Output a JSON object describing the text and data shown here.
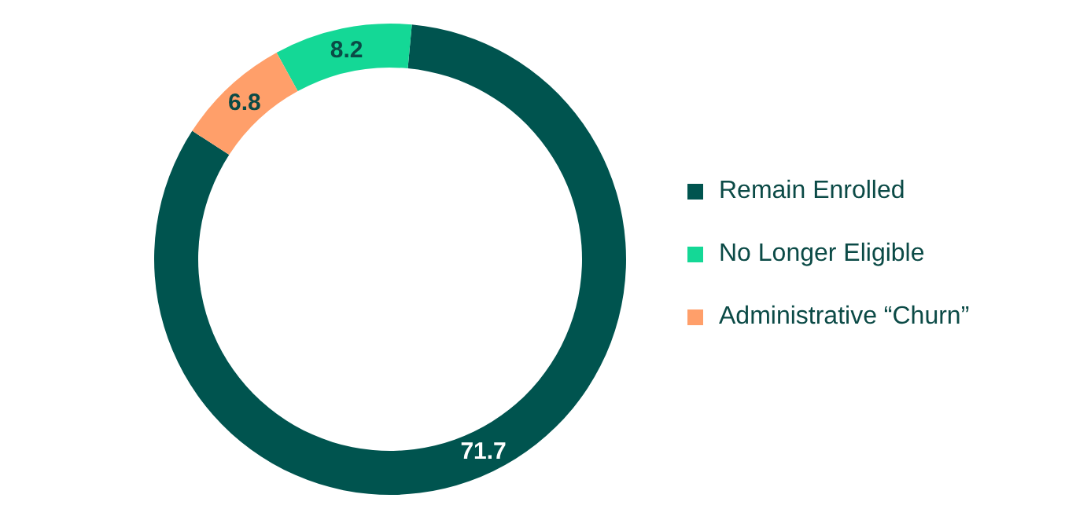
{
  "chart_data": {
    "type": "donut",
    "categories": [
      "Remain Enrolled",
      "No Longer Eligible",
      "Administrative “Churn”"
    ],
    "values": [
      71.7,
      8.2,
      6.8
    ],
    "colors": [
      "#00544f",
      "#14d896",
      "#ff9f6a"
    ],
    "data_labels": true,
    "legend": "right"
  }
}
